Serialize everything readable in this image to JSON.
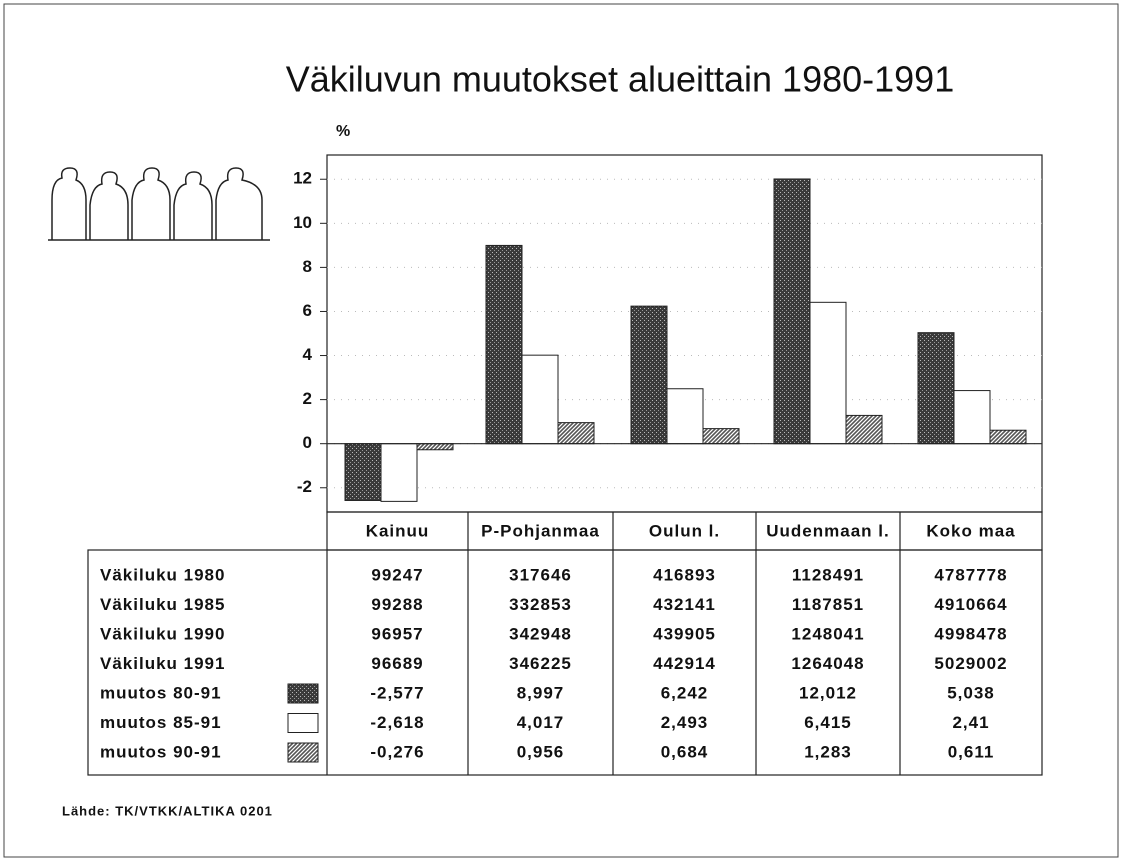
{
  "chart_data": {
    "type": "bar",
    "title": "Väkiluvun muutokset alueittain 1980-1991",
    "y_label": "%",
    "categories": [
      "Kainuu",
      "P-Pohjanmaa",
      "Oulun l.",
      "Uudenmaan l.",
      "Koko maa"
    ],
    "series": [
      {
        "name": "muutos 80-91",
        "color": "#3a3a3a",
        "values": [
          -2.577,
          8.997,
          6.242,
          12.012,
          5.038
        ],
        "value_labels": [
          "-2,577",
          "8,997",
          "6,242",
          "12,012",
          "5,038"
        ]
      },
      {
        "name": "muutos 85-91",
        "color": "#ffffff",
        "values": [
          -2.618,
          4.017,
          2.493,
          6.415,
          2.41
        ],
        "value_labels": [
          "-2,618",
          "4,017",
          "2,493",
          "6,415",
          "2,41"
        ]
      },
      {
        "name": "muutos 90-91",
        "color": "#555555",
        "values": [
          -0.276,
          0.956,
          0.684,
          1.283,
          0.611
        ],
        "value_labels": [
          "-0,276",
          "0,956",
          "0,684",
          "1,283",
          "0,611"
        ]
      }
    ],
    "ylim": [
      -3.1,
      13.1
    ],
    "yticks": [
      -2,
      0,
      2,
      4,
      6,
      8,
      10,
      12
    ],
    "grid": true
  },
  "table": {
    "rows": [
      {
        "label": "Väkiluku 1980",
        "values": [
          99247,
          317646,
          416893,
          1128491,
          4787778
        ]
      },
      {
        "label": "Väkiluku 1985",
        "values": [
          99288,
          332853,
          432141,
          1187851,
          4910664
        ]
      },
      {
        "label": "Väkiluku 1990",
        "values": [
          96957,
          342948,
          439905,
          1248041,
          4998478
        ]
      },
      {
        "label": "Väkiluku 1991",
        "values": [
          96689,
          346225,
          442914,
          1264048,
          5029002
        ]
      }
    ]
  },
  "source": "Lähde: TK/VTKK/ALTIKA 0201"
}
